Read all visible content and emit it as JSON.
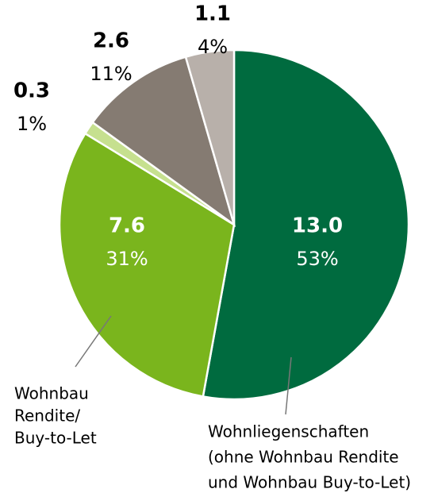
{
  "chart_data": {
    "type": "pie",
    "categories": [
      [
        "Wohnliegenschaften",
        "(ohne Wohnbau Rendite",
        "und Wohnbau Buy-to-Let)"
      ],
      [
        "Wohnbau",
        "Rendite/",
        "Buy-to-Let"
      ],
      null,
      null,
      null
    ],
    "values": [
      13.0,
      7.6,
      0.3,
      2.6,
      1.1
    ],
    "value_labels": [
      "13.0",
      "7.6",
      "0.3",
      "2.6",
      "1.1"
    ],
    "percent_labels": [
      "53%",
      "31%",
      "1%",
      "11%",
      "4%"
    ],
    "colors": [
      "#006b3f",
      "#7ab51d",
      "#c6e08f",
      "#857b72",
      "#b8b0aa"
    ]
  }
}
